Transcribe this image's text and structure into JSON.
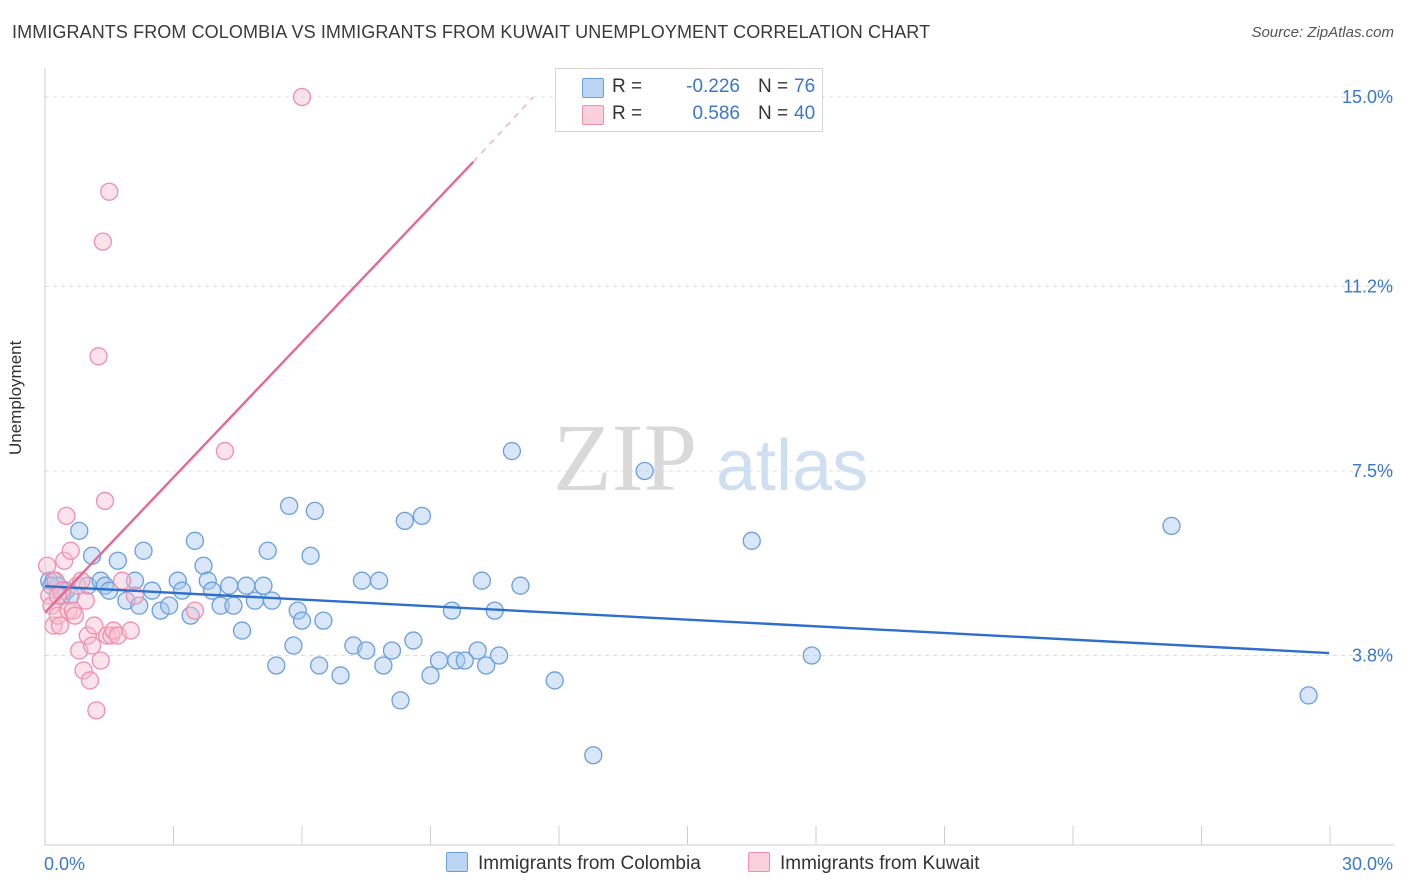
{
  "header": {
    "title": "IMMIGRANTS FROM COLOMBIA VS IMMIGRANTS FROM KUWAIT UNEMPLOYMENT CORRELATION CHART",
    "source": "Source: ZipAtlas.com"
  },
  "watermark": {
    "zip": "ZIP",
    "atlas": "atlas"
  },
  "legend": {
    "colombia": {
      "r_label": "R =",
      "r_value": "-0.226",
      "n_label": "N =",
      "n_value": "76"
    },
    "kuwait": {
      "r_label": "R =",
      "r_value": "0.586",
      "n_label": "N =",
      "n_value": "40"
    }
  },
  "bottom_legend": {
    "colombia": "Immigrants from Colombia",
    "kuwait": "Immigrants from Kuwait"
  },
  "colors": {
    "colombia_fill": "#a9c8f0",
    "colombia_stroke": "#6a9fdd",
    "colombia_line": "#2f6fca",
    "kuwait_fill": "#f8bfd0",
    "kuwait_stroke": "#ee8fae",
    "kuwait_line": "#e46a92",
    "tick_text": "#3a78c9",
    "grid": "#dcdcdc"
  },
  "chart_data": {
    "type": "scatter",
    "title": "IMMIGRANTS FROM COLOMBIA VS IMMIGRANTS FROM KUWAIT UNEMPLOYMENT CORRELATION CHART",
    "xlabel": "",
    "ylabel": "Unemployment",
    "xlim": [
      0,
      30
    ],
    "ylim": [
      0,
      15.0
    ],
    "x_tick_labels": [
      "0.0%",
      "30.0%"
    ],
    "y_ticks": [
      {
        "value": 3.8,
        "label": "3.8%"
      },
      {
        "value": 7.5,
        "label": "7.5%"
      },
      {
        "value": 11.2,
        "label": "11.2%"
      },
      {
        "value": 15.0,
        "label": "15.0%"
      }
    ],
    "series": [
      {
        "name": "Immigrants from Colombia",
        "color": "#6a9fdd",
        "trend": {
          "x": [
            0,
            29.98
          ],
          "y": [
            5.19,
            3.85
          ]
        },
        "points": [
          [
            0.1,
            5.3
          ],
          [
            0.2,
            5.3
          ],
          [
            0.3,
            5.2
          ],
          [
            0.4,
            5.0
          ],
          [
            0.5,
            5.1
          ],
          [
            0.6,
            5.0
          ],
          [
            0.8,
            6.3
          ],
          [
            1.0,
            5.2
          ],
          [
            1.1,
            5.8
          ],
          [
            1.3,
            5.3
          ],
          [
            1.4,
            5.2
          ],
          [
            1.5,
            5.1
          ],
          [
            1.7,
            5.7
          ],
          [
            1.9,
            4.9
          ],
          [
            2.1,
            5.3
          ],
          [
            2.2,
            4.8
          ],
          [
            2.3,
            5.9
          ],
          [
            2.5,
            5.1
          ],
          [
            2.7,
            4.7
          ],
          [
            2.9,
            4.8
          ],
          [
            3.1,
            5.3
          ],
          [
            3.2,
            5.1
          ],
          [
            3.4,
            4.6
          ],
          [
            3.5,
            6.1
          ],
          [
            3.7,
            5.6
          ],
          [
            3.8,
            5.3
          ],
          [
            3.9,
            5.1
          ],
          [
            4.1,
            4.8
          ],
          [
            4.3,
            5.2
          ],
          [
            4.4,
            4.8
          ],
          [
            4.6,
            4.3
          ],
          [
            4.7,
            5.2
          ],
          [
            4.9,
            4.9
          ],
          [
            5.1,
            5.2
          ],
          [
            5.2,
            5.9
          ],
          [
            5.3,
            4.9
          ],
          [
            5.4,
            3.6
          ],
          [
            5.7,
            6.8
          ],
          [
            5.8,
            4.0
          ],
          [
            5.9,
            4.7
          ],
          [
            6.0,
            4.5
          ],
          [
            6.2,
            5.8
          ],
          [
            6.3,
            6.7
          ],
          [
            6.4,
            3.6
          ],
          [
            6.5,
            4.5
          ],
          [
            6.9,
            3.4
          ],
          [
            7.2,
            4.0
          ],
          [
            7.4,
            5.3
          ],
          [
            7.5,
            3.9
          ],
          [
            7.8,
            5.3
          ],
          [
            7.9,
            3.6
          ],
          [
            8.1,
            3.9
          ],
          [
            8.3,
            2.9
          ],
          [
            8.4,
            6.5
          ],
          [
            8.6,
            4.1
          ],
          [
            8.8,
            6.6
          ],
          [
            9.0,
            3.4
          ],
          [
            9.2,
            3.7
          ],
          [
            9.5,
            4.7
          ],
          [
            9.6,
            3.7
          ],
          [
            9.8,
            3.7
          ],
          [
            10.1,
            3.9
          ],
          [
            10.2,
            5.3
          ],
          [
            10.3,
            3.6
          ],
          [
            10.5,
            4.7
          ],
          [
            10.6,
            3.8
          ],
          [
            10.9,
            7.9
          ],
          [
            11.1,
            5.2
          ],
          [
            11.9,
            3.3
          ],
          [
            12.8,
            1.8
          ],
          [
            14.0,
            7.5
          ],
          [
            16.5,
            6.1
          ],
          [
            17.9,
            3.8
          ],
          [
            26.3,
            6.4
          ],
          [
            29.5,
            3.0
          ],
          [
            0.15,
            5.2
          ]
        ]
      },
      {
        "name": "Immigrants from Kuwait",
        "color": "#ee8fae",
        "trend": {
          "x": [
            0,
            10.0
          ],
          "y": [
            4.66,
            13.7
          ]
        },
        "trend_dashed": {
          "x": [
            10.0,
            11.4
          ],
          "y": [
            13.7,
            15.0
          ]
        },
        "points": [
          [
            0.05,
            5.6
          ],
          [
            0.1,
            5.0
          ],
          [
            0.15,
            4.8
          ],
          [
            0.2,
            4.4
          ],
          [
            0.25,
            5.3
          ],
          [
            0.3,
            4.6
          ],
          [
            0.35,
            4.4
          ],
          [
            0.4,
            5.1
          ],
          [
            0.45,
            5.7
          ],
          [
            0.5,
            6.6
          ],
          [
            0.55,
            4.7
          ],
          [
            0.6,
            5.9
          ],
          [
            0.65,
            4.7
          ],
          [
            0.7,
            4.6
          ],
          [
            0.75,
            5.2
          ],
          [
            0.8,
            3.9
          ],
          [
            0.85,
            5.3
          ],
          [
            0.9,
            3.5
          ],
          [
            0.95,
            4.9
          ],
          [
            1.0,
            4.2
          ],
          [
            1.05,
            3.3
          ],
          [
            1.1,
            4.0
          ],
          [
            1.15,
            4.4
          ],
          [
            1.2,
            2.7
          ],
          [
            1.25,
            9.8
          ],
          [
            1.3,
            3.7
          ],
          [
            1.35,
            12.1
          ],
          [
            1.4,
            6.9
          ],
          [
            1.45,
            4.2
          ],
          [
            1.5,
            13.1
          ],
          [
            1.55,
            4.2
          ],
          [
            1.6,
            4.3
          ],
          [
            1.7,
            4.2
          ],
          [
            1.8,
            5.3
          ],
          [
            2.0,
            4.3
          ],
          [
            2.1,
            5.0
          ],
          [
            3.5,
            4.7
          ],
          [
            4.2,
            7.9
          ],
          [
            6.0,
            15.0
          ],
          [
            0.3,
            5.0
          ]
        ]
      }
    ]
  }
}
